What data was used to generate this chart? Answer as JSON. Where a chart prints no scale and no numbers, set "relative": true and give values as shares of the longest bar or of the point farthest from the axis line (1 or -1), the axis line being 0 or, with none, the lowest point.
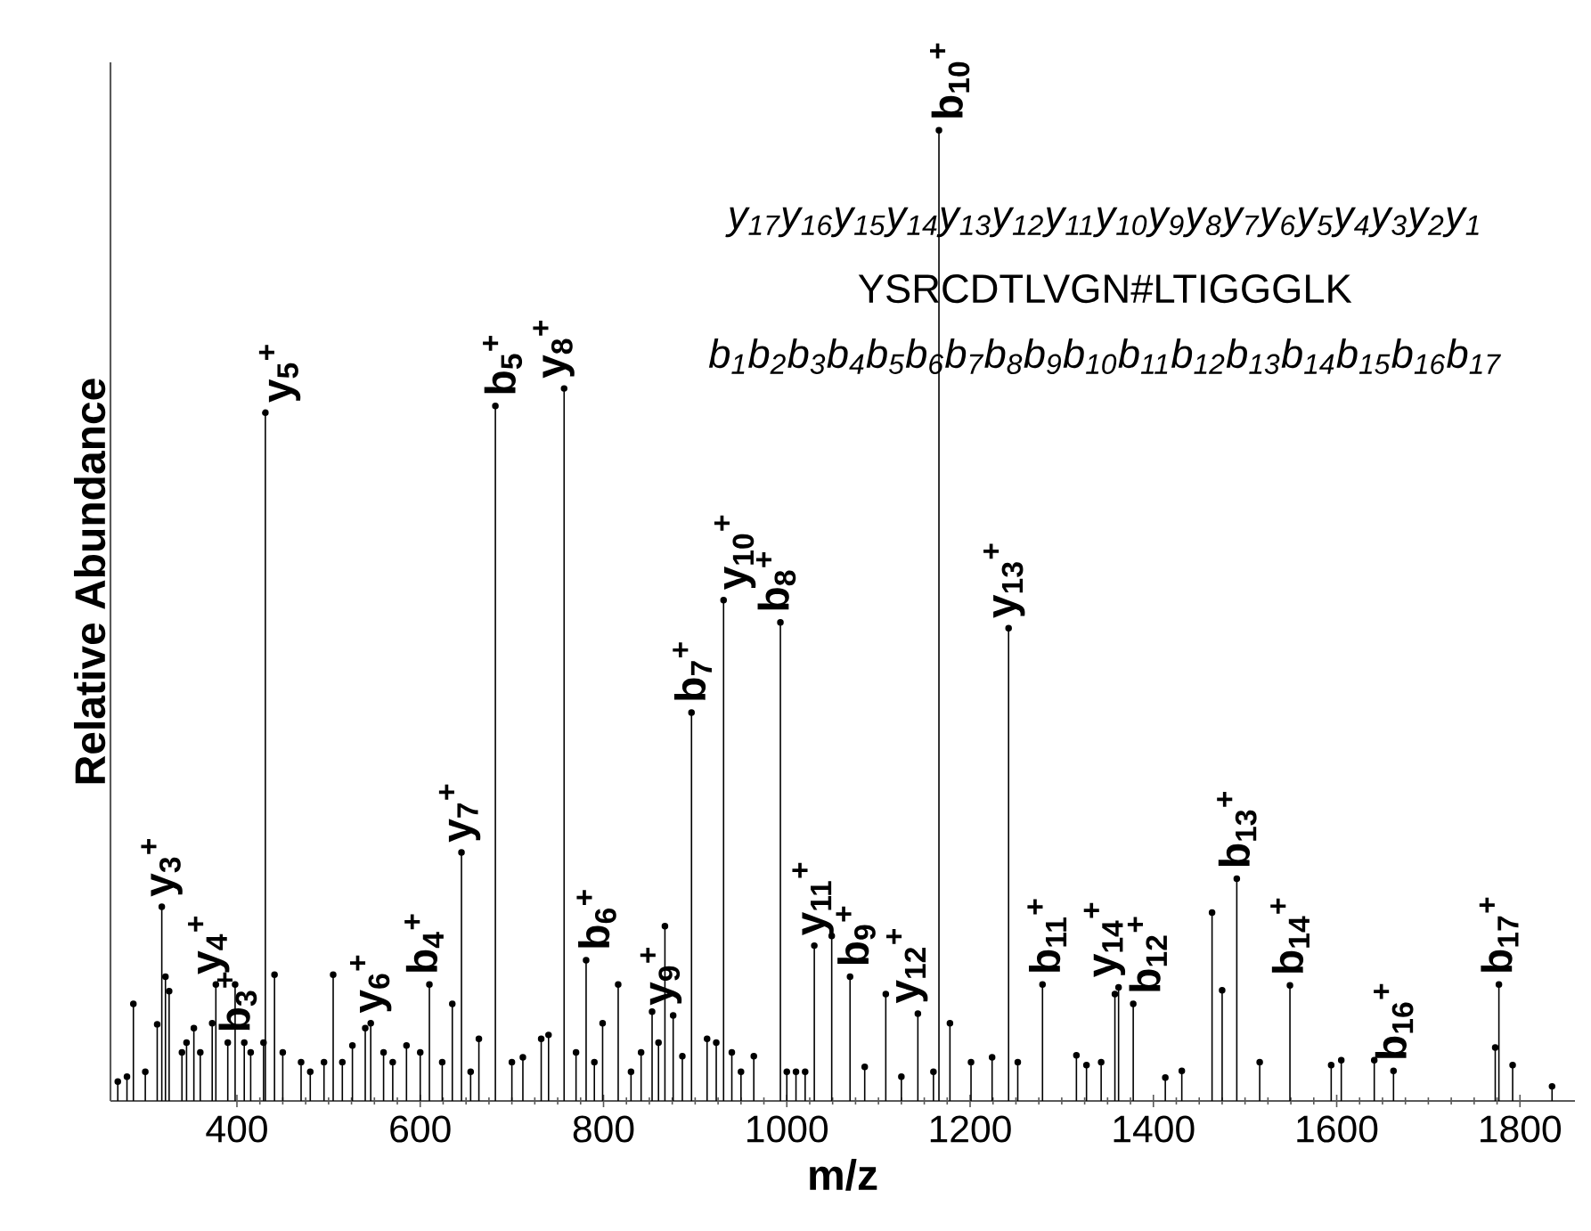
{
  "chart_data": {
    "type": "lollipop",
    "marker": "circle",
    "relative": true,
    "color": "#000000",
    "xlabel": "m/z",
    "ylabel": "Relative Abundance",
    "xlim": [
      262,
      1860
    ],
    "xticks": [
      400,
      600,
      800,
      1000,
      1200,
      1400,
      1600,
      1800
    ],
    "x": [
      270,
      280,
      287,
      300,
      313,
      318,
      322,
      326,
      340,
      345,
      353,
      360,
      373,
      377,
      390,
      398,
      408,
      415,
      429,
      431,
      441,
      450,
      470,
      480,
      495,
      505,
      515,
      526,
      540,
      546,
      560,
      570,
      585,
      600,
      610,
      624,
      635,
      645,
      655,
      664,
      682,
      700,
      712,
      732,
      740,
      757,
      770,
      781,
      790,
      799,
      816,
      830,
      841,
      853,
      860,
      867,
      876,
      886,
      896,
      913,
      923,
      931,
      940,
      950,
      964,
      993,
      1000,
      1010,
      1020,
      1030,
      1049,
      1069,
      1085,
      1108,
      1125,
      1143,
      1160,
      1166,
      1178,
      1201,
      1224,
      1242,
      1252,
      1279,
      1316,
      1327,
      1343,
      1358,
      1362,
      1378,
      1413,
      1431,
      1464,
      1475,
      1491,
      1516,
      1549,
      1594,
      1605,
      1641,
      1662,
      1773,
      1777,
      1792,
      1835
    ],
    "values": [
      0.02,
      0.025,
      0.1,
      0.03,
      0.079,
      0.2,
      0.128,
      0.113,
      0.05,
      0.06,
      0.075,
      0.05,
      0.08,
      0.12,
      0.06,
      0.12,
      0.06,
      0.05,
      0.06,
      0.709,
      0.13,
      0.05,
      0.04,
      0.03,
      0.04,
      0.13,
      0.04,
      0.057,
      0.075,
      0.08,
      0.05,
      0.04,
      0.057,
      0.05,
      0.12,
      0.04,
      0.1,
      0.256,
      0.03,
      0.064,
      0.716,
      0.04,
      0.045,
      0.064,
      0.068,
      0.734,
      0.05,
      0.145,
      0.04,
      0.08,
      0.12,
      0.03,
      0.05,
      0.092,
      0.06,
      0.18,
      0.088,
      0.046,
      0.4,
      0.064,
      0.06,
      0.516,
      0.05,
      0.03,
      0.046,
      0.493,
      0.03,
      0.03,
      0.03,
      0.16,
      0.17,
      0.128,
      0.035,
      0.11,
      0.025,
      0.09,
      0.03,
      1,
      0.08,
      0.04,
      0.045,
      0.487,
      0.04,
      0.12,
      0.047,
      0.037,
      0.04,
      0.11,
      0.117,
      0.1,
      0.024,
      0.031,
      0.194,
      0.114,
      0.229,
      0.04,
      0.119,
      0.037,
      0.042,
      0.042,
      0.031,
      0.055,
      0.12,
      0.037,
      0.015
    ],
    "annotations": [
      {
        "text": "y$_{3}$$^{+}$",
        "x": 318,
        "y": 0.2
      },
      {
        "text": "y$_{4}$$^{+}$",
        "x": 377,
        "y": 0.12
      },
      {
        "text": "b$_{3}$$^{+}$",
        "x": 408,
        "y": 0.06
      },
      {
        "text": "y$_{5}$$^{+}$",
        "x": 431,
        "y": 0.709
      },
      {
        "text": "y$_{6}$$^{+}$",
        "x": 546,
        "y": 0.08
      },
      {
        "text": "b$_{4}$$^{+}$",
        "x": 610,
        "y": 0.12
      },
      {
        "text": "y$_{7}$$^{+}$",
        "x": 645,
        "y": 0.256
      },
      {
        "text": "b$_{5}$$^{+}$",
        "x": 682,
        "y": 0.716
      },
      {
        "text": "y$_{8}$$^{+}$",
        "x": 757,
        "y": 0.734
      },
      {
        "text": "b$_{6}$$^{+}$",
        "x": 781,
        "y": 0.145
      },
      {
        "text": "y$_{9}$$^{+}$",
        "x": 876,
        "y": 0.088
      },
      {
        "text": "b$_{7}$$^{+}$",
        "x": 896,
        "y": 0.4
      },
      {
        "text": "y$_{10}$$^{+}$",
        "x": 931,
        "y": 0.516
      },
      {
        "text": "b$_{8}$$^{+}$",
        "x": 993,
        "y": 0.493
      },
      {
        "text": "y$_{11}$$^{+}$",
        "x": 1030,
        "y": 0.16
      },
      {
        "text": "b$_{9}$$^{+}$",
        "x": 1069,
        "y": 0.128
      },
      {
        "text": "y$_{12}$$^{+}$",
        "x": 1143,
        "y": 0.09
      },
      {
        "text": "b$_{10}$$^{+}$",
        "x": 1166,
        "y": 1
      },
      {
        "text": "y$_{13}$$^{+}$",
        "x": 1242,
        "y": 0.487
      },
      {
        "text": "b$_{11}$$^{+}$",
        "x": 1279,
        "y": 0.12
      },
      {
        "text": "y$_{14}$$^{+}$",
        "x": 1362,
        "y": 0.117
      },
      {
        "text": "b$_{12}$$^{+}$",
        "x": 1378,
        "y": 0.1
      },
      {
        "text": "b$_{13}$$^{+}$",
        "x": 1491,
        "y": 0.229
      },
      {
        "text": "b$_{14}$$^{+}$",
        "x": 1549,
        "y": 0.119
      },
      {
        "text": "b$_{16}$$^{+}$",
        "x": 1662,
        "y": 0.031
      },
      {
        "text": "b$_{17}$$^{+}$",
        "x": 1777,
        "y": 0.12
      },
      "y$_{17}$y$_{16}$y$_{15}$y$_{14}$y$_{13}$y$_{12}$y$_{11}$y$_{10}$y$_{9}$y$_{8}$y$_{7}$y$_{6}$y$_{5}$y$_{4}$y$_{3}$y$_{2}$y$_{1}$",
      "YSRCDTLVGN#LTIGGGLK",
      "b$_{1}$b$_{2}$b$_{3}$b$_{4}$b$_{5}$b$_{6}$b$_{7}$b$_{8}$b$_{9}$b$_{10}$b$_{11}$b$_{12}$b$_{13}$b$_{14}$b$_{15}$b$_{16}$b$_{17}$"
    ]
  }
}
